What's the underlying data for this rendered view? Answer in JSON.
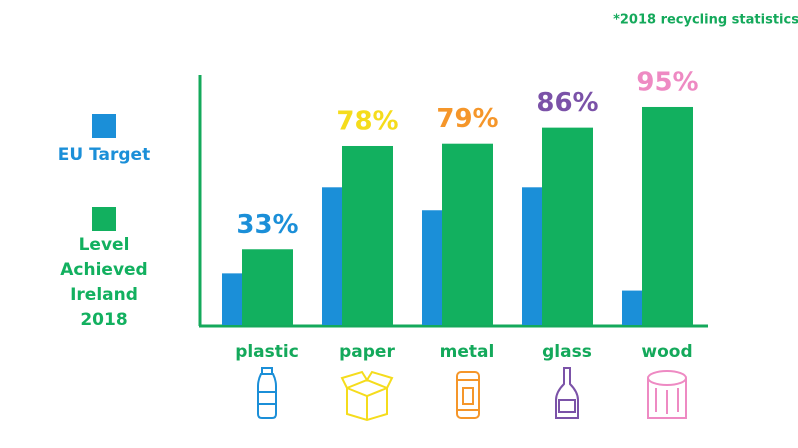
{
  "chart_data": {
    "type": "bar",
    "annotation": "*2018 recycling statistics",
    "categories": [
      "plastic",
      "paper",
      "metal",
      "glass",
      "wood"
    ],
    "category_color": "#14a95b",
    "series": [
      {
        "name": "EU Target",
        "color": "#1b8fd8",
        "values": [
          22.5,
          60,
          50,
          60,
          15
        ]
      },
      {
        "name": "Level Achieved Ireland 2018",
        "color": "#12b05f",
        "values": [
          33,
          78,
          79,
          86,
          95
        ],
        "value_labels": [
          "33%",
          "78%",
          "79%",
          "86%",
          "95%"
        ],
        "label_colors": [
          "#1b8fd8",
          "#f5dc1c",
          "#f5962a",
          "#7b52a8",
          "#ee8ac3"
        ]
      }
    ],
    "ylim": [
      0,
      100
    ]
  }
}
